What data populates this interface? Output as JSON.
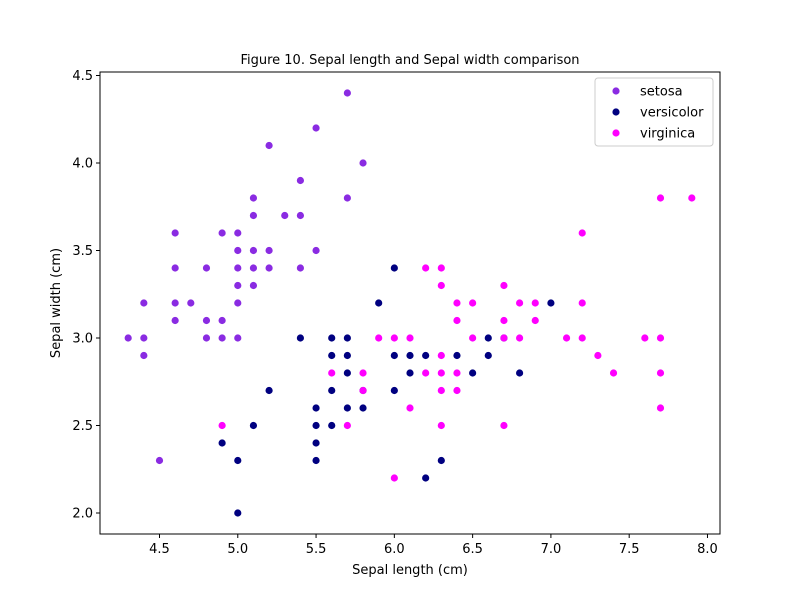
{
  "chart_data": {
    "type": "scatter",
    "title": "Figure 10. Sepal length and Sepal width comparison",
    "xlabel": "Sepal length (cm)",
    "ylabel": "Sepal width (cm)",
    "xlim": [
      4.12,
      8.08
    ],
    "ylim": [
      1.88,
      4.52
    ],
    "xticks": [
      "4.5",
      "5.0",
      "5.5",
      "6.0",
      "6.5",
      "7.0",
      "7.5",
      "8.0"
    ],
    "yticks": [
      "2.0",
      "2.5",
      "3.0",
      "3.5",
      "4.0",
      "4.5"
    ],
    "grid": false,
    "legend_position": "top-right",
    "series": [
      {
        "name": "setosa",
        "color": "#8a2be2",
        "points": [
          [
            4.3,
            3.0
          ],
          [
            4.4,
            3.2
          ],
          [
            4.4,
            3.0
          ],
          [
            4.4,
            2.9
          ],
          [
            4.5,
            2.3
          ],
          [
            4.6,
            3.6
          ],
          [
            4.6,
            3.4
          ],
          [
            4.6,
            3.2
          ],
          [
            4.6,
            3.1
          ],
          [
            4.7,
            3.2
          ],
          [
            4.8,
            3.4
          ],
          [
            4.8,
            3.1
          ],
          [
            4.8,
            3.0
          ],
          [
            4.9,
            3.6
          ],
          [
            4.9,
            3.1
          ],
          [
            4.9,
            3.0
          ],
          [
            5.0,
            3.6
          ],
          [
            5.0,
            3.5
          ],
          [
            5.0,
            3.4
          ],
          [
            5.0,
            3.3
          ],
          [
            5.0,
            3.2
          ],
          [
            5.0,
            3.0
          ],
          [
            5.1,
            3.8
          ],
          [
            5.1,
            3.7
          ],
          [
            5.1,
            3.5
          ],
          [
            5.1,
            3.4
          ],
          [
            5.1,
            3.3
          ],
          [
            5.2,
            4.1
          ],
          [
            5.2,
            3.5
          ],
          [
            5.2,
            3.4
          ],
          [
            5.3,
            3.7
          ],
          [
            5.4,
            3.9
          ],
          [
            5.4,
            3.7
          ],
          [
            5.4,
            3.4
          ],
          [
            5.5,
            4.2
          ],
          [
            5.5,
            3.5
          ],
          [
            5.7,
            4.4
          ],
          [
            5.7,
            3.8
          ],
          [
            5.8,
            4.0
          ]
        ]
      },
      {
        "name": "versicolor",
        "color": "#000080",
        "points": [
          [
            4.9,
            2.4
          ],
          [
            5.0,
            2.3
          ],
          [
            5.0,
            2.0
          ],
          [
            5.1,
            2.5
          ],
          [
            5.2,
            2.7
          ],
          [
            5.4,
            3.0
          ],
          [
            5.5,
            2.6
          ],
          [
            5.5,
            2.5
          ],
          [
            5.5,
            2.4
          ],
          [
            5.5,
            2.3
          ],
          [
            5.6,
            3.0
          ],
          [
            5.6,
            2.9
          ],
          [
            5.6,
            2.7
          ],
          [
            5.6,
            2.5
          ],
          [
            5.7,
            3.0
          ],
          [
            5.7,
            2.9
          ],
          [
            5.7,
            2.8
          ],
          [
            5.7,
            2.6
          ],
          [
            5.8,
            2.7
          ],
          [
            5.8,
            2.6
          ],
          [
            5.9,
            3.2
          ],
          [
            6.0,
            3.4
          ],
          [
            6.0,
            2.9
          ],
          [
            6.0,
            2.7
          ],
          [
            6.1,
            2.9
          ],
          [
            6.1,
            2.8
          ],
          [
            6.2,
            2.9
          ],
          [
            6.2,
            2.2
          ],
          [
            6.3,
            2.3
          ],
          [
            6.4,
            2.9
          ],
          [
            6.5,
            2.8
          ],
          [
            6.6,
            3.0
          ],
          [
            6.6,
            2.9
          ],
          [
            6.7,
            3.0
          ],
          [
            6.8,
            2.8
          ],
          [
            7.0,
            3.2
          ]
        ]
      },
      {
        "name": "virginica",
        "color": "#ff00ff",
        "points": [
          [
            4.9,
            2.5
          ],
          [
            5.6,
            2.8
          ],
          [
            5.7,
            2.5
          ],
          [
            5.8,
            2.8
          ],
          [
            5.8,
            2.7
          ],
          [
            5.9,
            3.0
          ],
          [
            6.0,
            3.0
          ],
          [
            6.0,
            2.2
          ],
          [
            6.1,
            3.0
          ],
          [
            6.1,
            2.6
          ],
          [
            6.2,
            3.4
          ],
          [
            6.2,
            2.8
          ],
          [
            6.3,
            3.4
          ],
          [
            6.3,
            3.3
          ],
          [
            6.3,
            2.9
          ],
          [
            6.3,
            2.8
          ],
          [
            6.3,
            2.7
          ],
          [
            6.3,
            2.5
          ],
          [
            6.4,
            3.2
          ],
          [
            6.4,
            3.1
          ],
          [
            6.4,
            2.8
          ],
          [
            6.4,
            2.7
          ],
          [
            6.5,
            3.2
          ],
          [
            6.5,
            3.0
          ],
          [
            6.7,
            3.3
          ],
          [
            6.7,
            3.1
          ],
          [
            6.7,
            3.0
          ],
          [
            6.7,
            2.5
          ],
          [
            6.8,
            3.2
          ],
          [
            6.8,
            3.0
          ],
          [
            6.9,
            3.2
          ],
          [
            6.9,
            3.1
          ],
          [
            7.1,
            3.0
          ],
          [
            7.2,
            3.6
          ],
          [
            7.2,
            3.2
          ],
          [
            7.2,
            3.0
          ],
          [
            7.3,
            2.9
          ],
          [
            7.4,
            2.8
          ],
          [
            7.6,
            3.0
          ],
          [
            7.7,
            3.8
          ],
          [
            7.7,
            3.0
          ],
          [
            7.7,
            2.8
          ],
          [
            7.7,
            2.6
          ],
          [
            7.9,
            3.8
          ]
        ]
      }
    ]
  }
}
